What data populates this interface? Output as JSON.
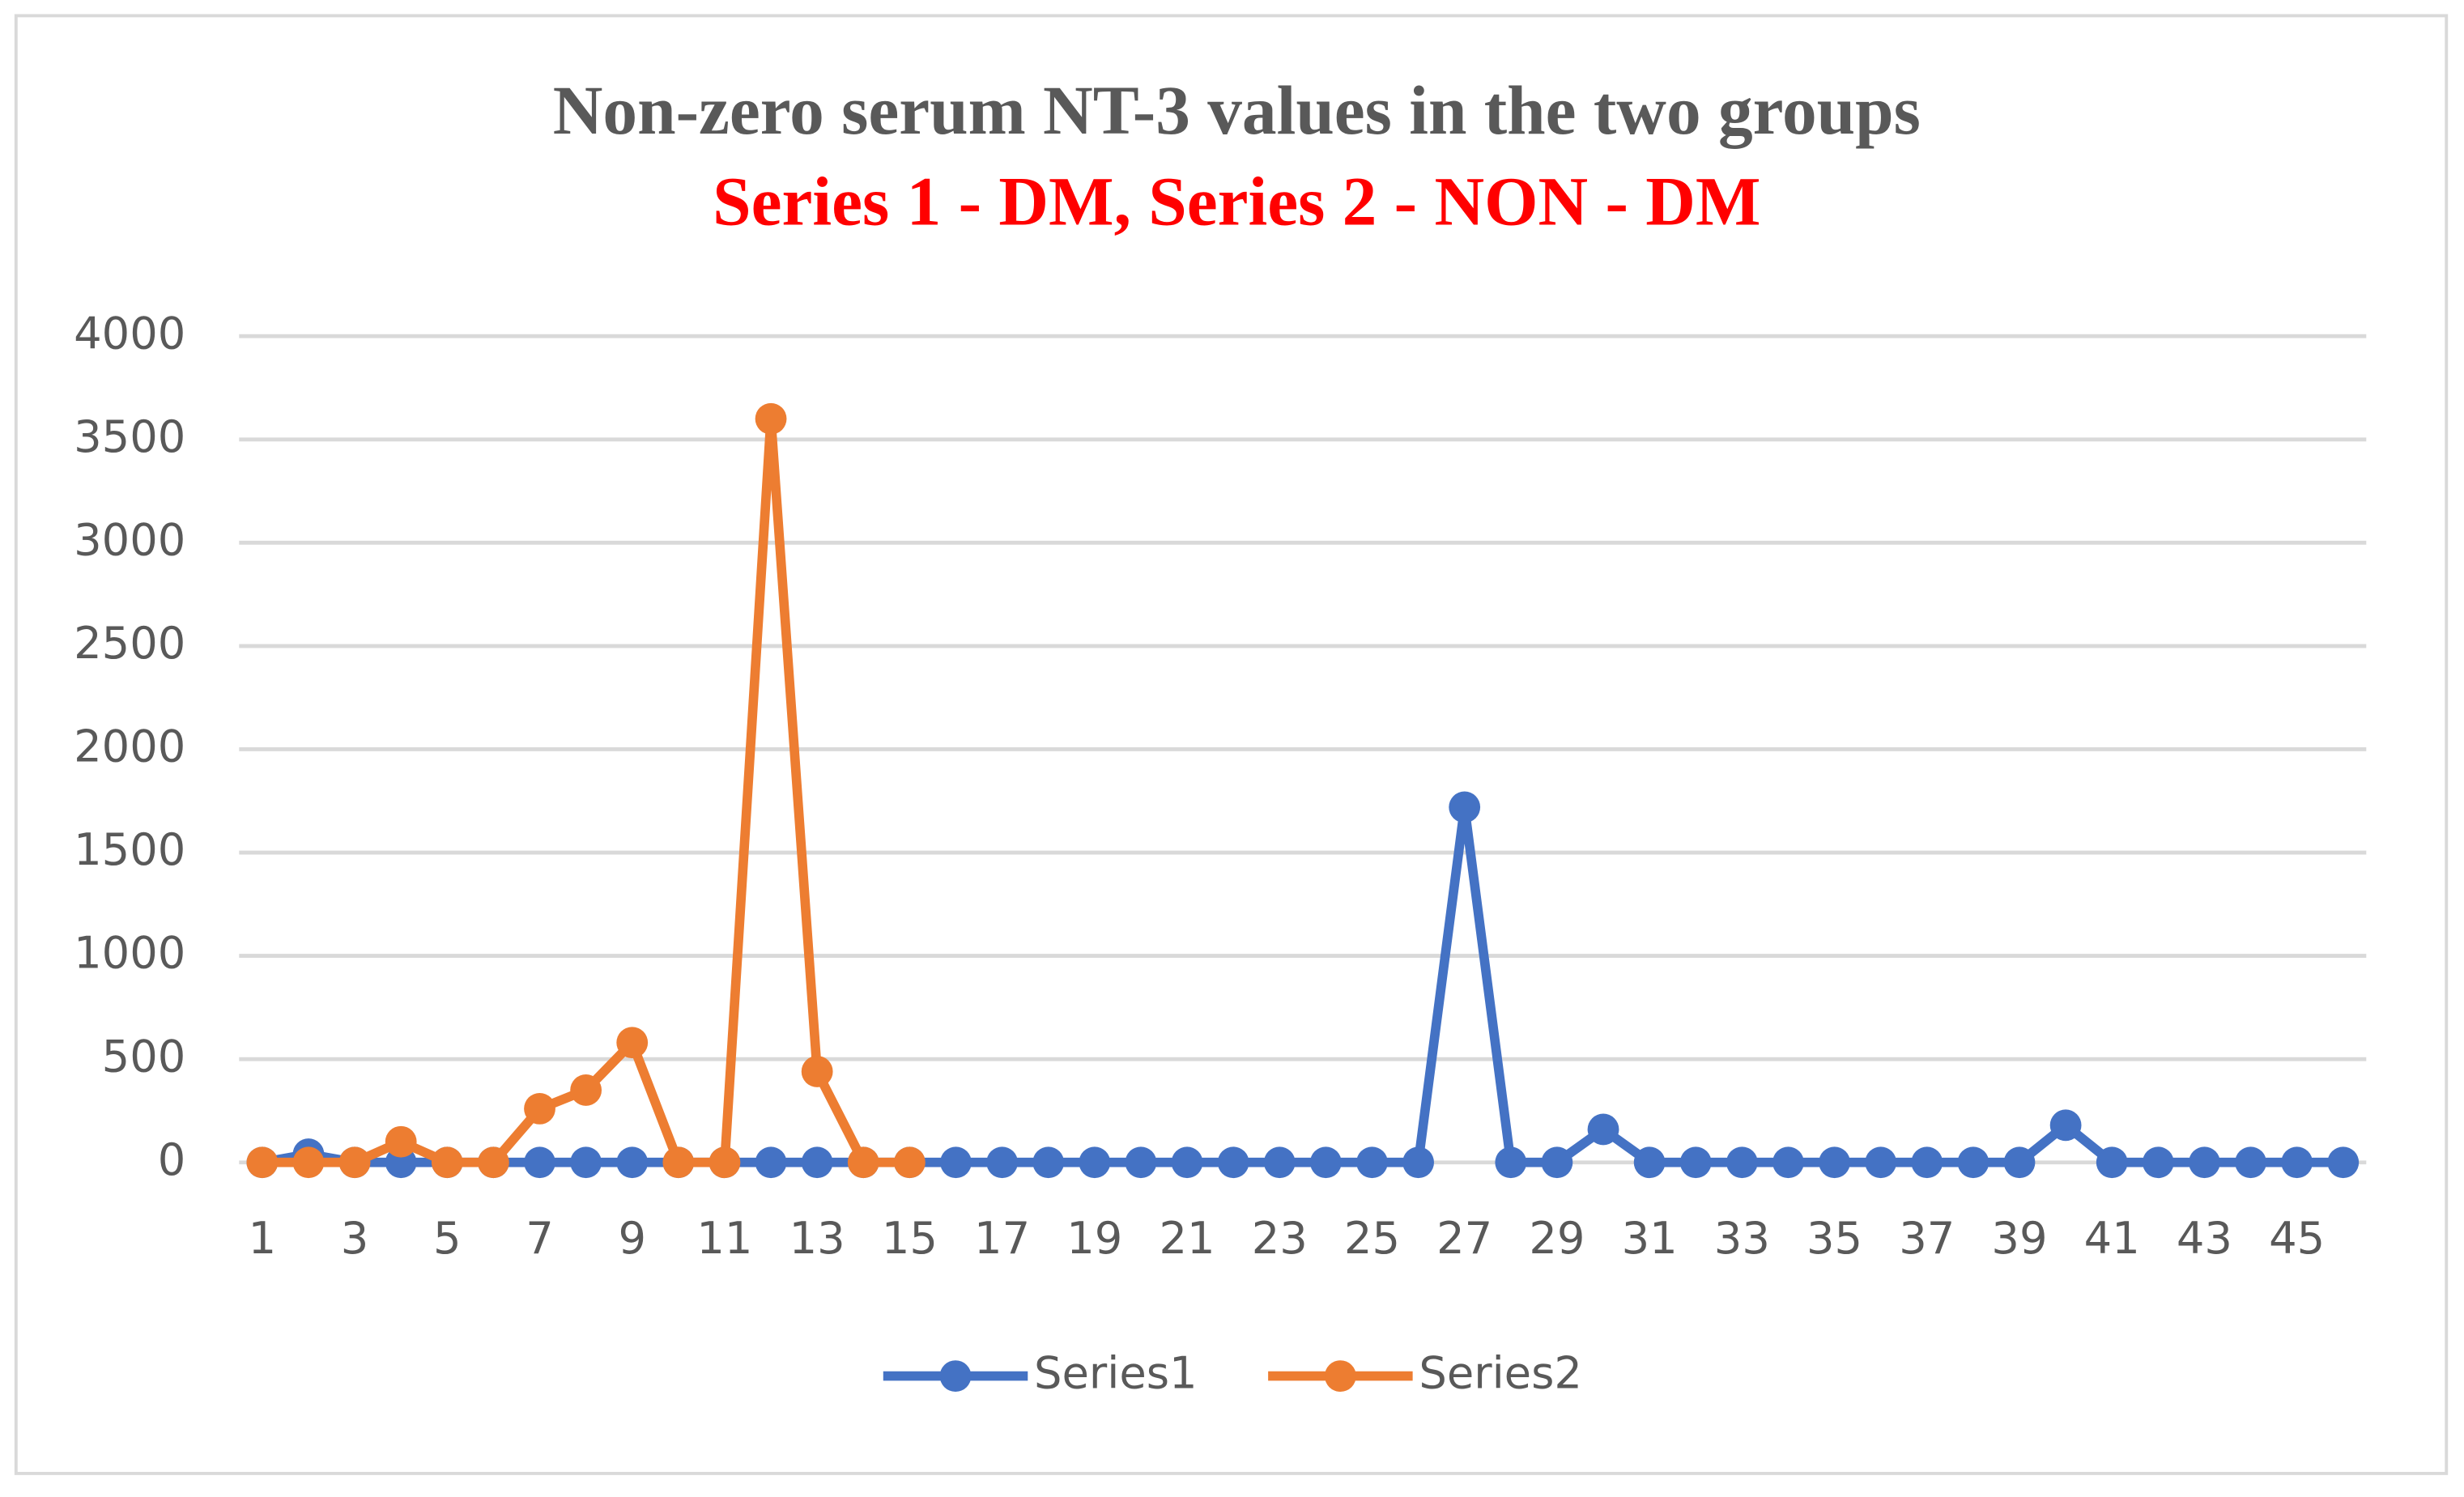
{
  "chart_data": {
    "type": "line",
    "title": "Non-zero serum NT-3 values in the two groups",
    "subtitle": "Series 1 - DM, Series 2 - NON - DM",
    "categories": [
      "1",
      null,
      "3",
      null,
      "5",
      null,
      "7",
      null,
      "9",
      null,
      "11",
      null,
      "13",
      null,
      "15",
      null,
      "17",
      null,
      "19",
      null,
      "21",
      null,
      "23",
      null,
      "25",
      null,
      "27",
      null,
      "29",
      null,
      "31",
      null,
      "33",
      null,
      "35",
      null,
      "37",
      null,
      "39",
      null,
      "41",
      null,
      "43",
      null,
      "45",
      null
    ],
    "series": [
      {
        "name": "Series1",
        "color": "#4472c4",
        "values": [
          0,
          40,
          0,
          0,
          0,
          0,
          0,
          0,
          0,
          0,
          0,
          0,
          0,
          0,
          0,
          0,
          0,
          0,
          0,
          0,
          0,
          0,
          0,
          0,
          0,
          0,
          1720,
          0,
          0,
          160,
          0,
          0,
          0,
          0,
          0,
          0,
          0,
          0,
          0,
          180,
          0,
          0,
          0,
          0,
          0,
          0
        ]
      },
      {
        "name": "Series2",
        "color": "#ed7d31",
        "values": [
          0,
          0,
          0,
          100,
          0,
          0,
          260,
          350,
          580,
          0,
          0,
          3600,
          440,
          0,
          0,
          null,
          null,
          null,
          null,
          null,
          null,
          null,
          null,
          null,
          null,
          null,
          null,
          null,
          null,
          null,
          null,
          null,
          null,
          null,
          null,
          null,
          null,
          null,
          null,
          null,
          null,
          null,
          null,
          null,
          null,
          null
        ]
      }
    ],
    "ylim": [
      0,
      4000
    ],
    "yticks": [
      0,
      500,
      1000,
      1500,
      2000,
      2500,
      3000,
      3500,
      4000
    ],
    "grid": true,
    "legend": "bottom"
  }
}
